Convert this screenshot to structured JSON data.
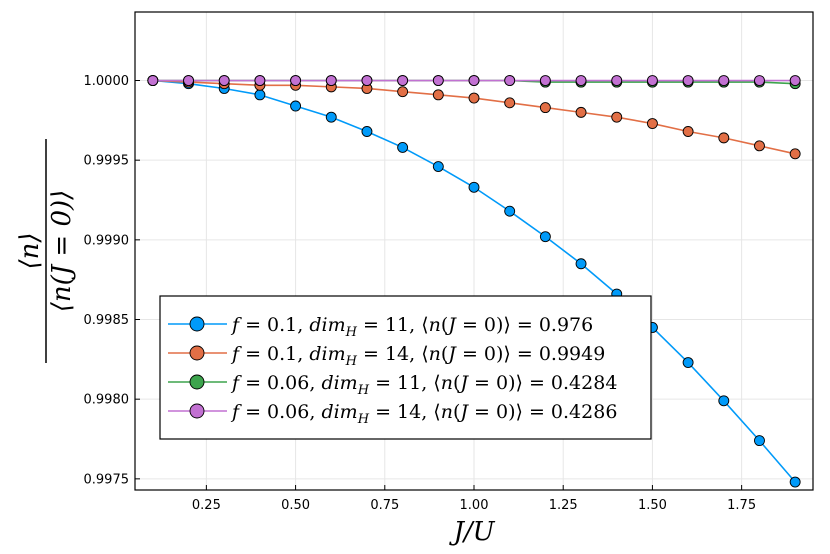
{
  "chart_data": {
    "type": "line",
    "title": "",
    "xlabel": "J/U",
    "ylabel_numerator": "⟨n⟩",
    "ylabel_denominator": "⟨n(J = 0)⟩",
    "xlim": [
      0.05,
      1.95
    ],
    "ylim": [
      0.99743,
      1.00043
    ],
    "x_ticks": [
      0.25,
      0.5,
      0.75,
      1.0,
      1.25,
      1.5,
      1.75
    ],
    "x_tick_labels": [
      "0.25",
      "0.50",
      "0.75",
      "1.00",
      "1.25",
      "1.50",
      "1.75"
    ],
    "y_ticks": [
      0.9975,
      0.998,
      0.9985,
      0.999,
      0.9995,
      1.0
    ],
    "y_tick_labels": [
      "0.9975",
      "0.9980",
      "0.9985",
      "0.9990",
      "0.9995",
      "1.0000"
    ],
    "grid": true,
    "legend_position": "bottom-left",
    "x": [
      0.1,
      0.2,
      0.3,
      0.4,
      0.5,
      0.6,
      0.7,
      0.8,
      0.9,
      1.0,
      1.1,
      1.2,
      1.3,
      1.4,
      1.5,
      1.6,
      1.7,
      1.8,
      1.9
    ],
    "series": [
      {
        "name": "f = 0.1, dim_H = 11, ⟨n(J = 0)⟩ = 0.976",
        "color": "#009AF9",
        "values": [
          1.0,
          0.99998,
          0.99995,
          0.99991,
          0.99984,
          0.99977,
          0.99968,
          0.99958,
          0.99946,
          0.99933,
          0.99918,
          0.99902,
          0.99885,
          0.99866,
          0.99845,
          0.99823,
          0.99799,
          0.99774,
          0.99748
        ]
      },
      {
        "name": "f = 0.1, dim_H = 14, ⟨n(J = 0)⟩ = 0.9949",
        "color": "#E26F46",
        "values": [
          1.0,
          0.99999,
          0.99998,
          0.99997,
          0.99997,
          0.99996,
          0.99995,
          0.99993,
          0.99991,
          0.99989,
          0.99986,
          0.99983,
          0.9998,
          0.99977,
          0.99973,
          0.99968,
          0.99964,
          0.99959,
          0.99954
        ]
      },
      {
        "name": "f = 0.06, dim_H = 11, ⟨n(J = 0)⟩ = 0.4284",
        "color": "#3DA44D",
        "values": [
          1.0,
          1.0,
          1.0,
          1.0,
          1.0,
          1.0,
          1.0,
          1.0,
          1.0,
          1.0,
          1.0,
          0.99999,
          0.99999,
          0.99999,
          0.99999,
          0.99999,
          0.99999,
          0.99999,
          0.99998
        ]
      },
      {
        "name": "f = 0.06, dim_H = 14, ⟨n(J = 0)⟩ = 0.4286",
        "color": "#C271D2",
        "values": [
          1.0,
          1.0,
          1.0,
          1.0,
          1.0,
          1.0,
          1.0,
          1.0,
          1.0,
          1.0,
          1.0,
          1.0,
          1.0,
          1.0,
          1.0,
          1.0,
          1.0,
          1.0,
          1.0
        ]
      }
    ],
    "legend_entries": [
      {
        "f": "0.1",
        "dim": "11",
        "value": "0.976"
      },
      {
        "f": "0.1",
        "dim": "14",
        "value": "0.9949"
      },
      {
        "f": "0.06",
        "dim": "11",
        "value": "0.4284"
      },
      {
        "f": "0.06",
        "dim": "14",
        "value": "0.4286"
      }
    ]
  }
}
